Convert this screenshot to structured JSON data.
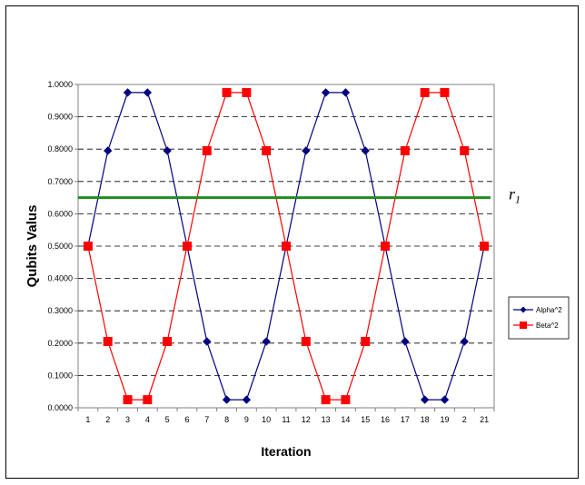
{
  "chart_data": {
    "type": "line",
    "title": "",
    "xlabel": "Iteration",
    "ylabel": "Qubits Valus",
    "categories": [
      "1",
      "2",
      "3",
      "4",
      "5",
      "6",
      "7",
      "8",
      "9",
      "10",
      "11",
      "12",
      "13",
      "14",
      "15",
      "16",
      "17",
      "18",
      "19",
      "2",
      "21"
    ],
    "ylim": [
      0,
      1
    ],
    "yticks": [
      "0.0000",
      "0.1000",
      "0.2000",
      "0.3000",
      "0.4000",
      "0.5000",
      "0.6000",
      "0.7000",
      "0.8000",
      "0.9000",
      "1.0000"
    ],
    "grid": "horizontal dashed",
    "legend_position": "right",
    "series": [
      {
        "name": "Alpha^2",
        "color": "#000080",
        "marker": "diamond",
        "values": [
          0.5,
          0.795,
          0.975,
          0.975,
          0.795,
          0.5,
          0.205,
          0.025,
          0.025,
          0.205,
          0.5,
          0.795,
          0.975,
          0.975,
          0.795,
          0.5,
          0.205,
          0.025,
          0.025,
          0.205,
          0.5
        ]
      },
      {
        "name": "Beta^2",
        "color": "#ff0000",
        "marker": "square",
        "values": [
          0.5,
          0.205,
          0.025,
          0.025,
          0.205,
          0.5,
          0.795,
          0.975,
          0.975,
          0.795,
          0.5,
          0.205,
          0.025,
          0.025,
          0.205,
          0.5,
          0.795,
          0.975,
          0.975,
          0.795,
          0.5
        ]
      }
    ],
    "reference_line": {
      "value": 0.65,
      "label_main": "r",
      "label_sub": "1",
      "color": "#228B22"
    }
  }
}
